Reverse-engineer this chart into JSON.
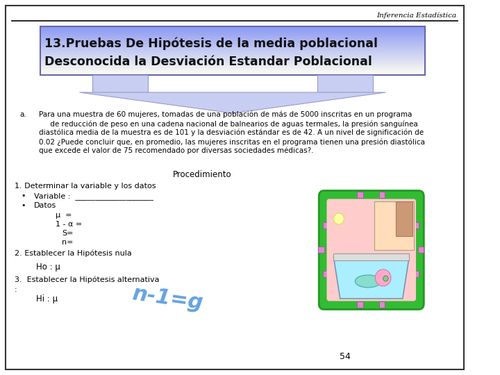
{
  "bg_color": "#ffffff",
  "border_color": "#000000",
  "header_italic": "Inferencia Estadística",
  "title_line1": "13.Pruebas De Hipótesis de la media poblacional",
  "title_line2": "Desconocida la Desviación Estandar Poblacional",
  "problem_label": "a.",
  "prob_lines": [
    "Para una muestra de 60 mujeres, tomadas de una población de más de 5000 inscritas en un programa",
    "     de reducción de peso en una cadena nacional de balnearios de aguas termales, la presión sanguínea",
    "diastólica media de la muestra es de 101 y la desviación estándar es de 42. A un nivel de significación de",
    "0.02 ¿Puede concluir que, en promedio, las mujeres inscritas en el programa tienen una presión diastólica",
    "que excede el valor de 75 recomendado por diversas sociedades médicas?."
  ],
  "proc_title": "Procedimiento",
  "step1": "1. Determinar la variable y los datos",
  "bullet1": "Variable :  ____________________",
  "bullet2": "Datos",
  "mu_line": "μ  =",
  "alpha_line": "1 - α =",
  "s_line": "S=",
  "n_line": "n=",
  "step2": "2. Establecer la Hipótesis nula",
  "ho_line": "Ho : μ",
  "step3": "3.  Establecer la Hipótesis alternativa",
  "hi_line": "Hi : μ",
  "page_num": "54"
}
